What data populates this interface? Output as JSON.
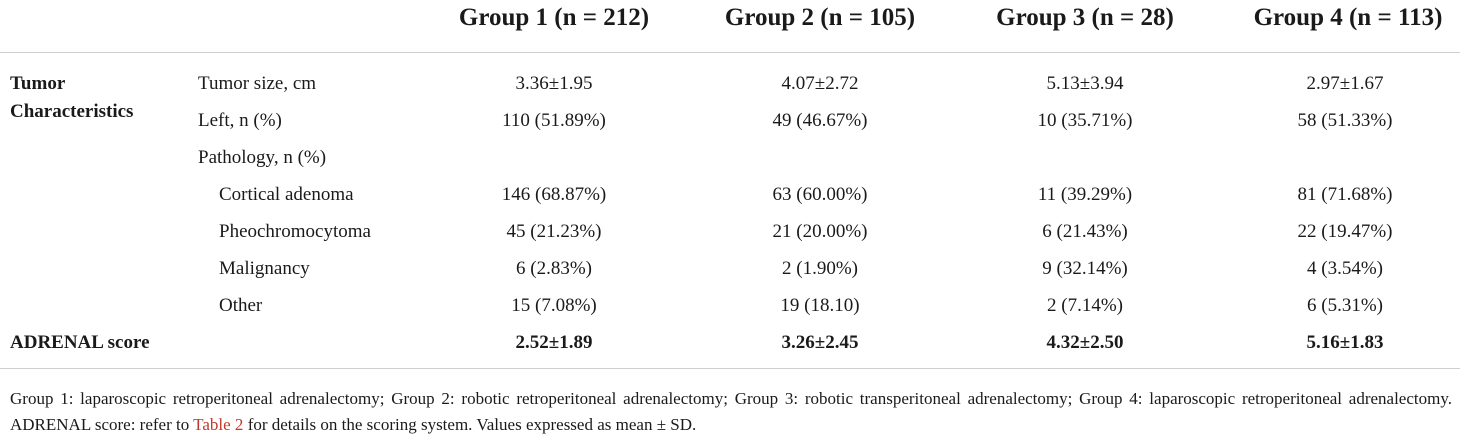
{
  "headers": [
    "Group 1 (n = 212)",
    "Group 2 (n = 105)",
    "Group 3 (n = 28)",
    "Group 4 (n = 113)"
  ],
  "section": {
    "line1": "Tumor",
    "line2": "Characteristics"
  },
  "rows": [
    {
      "label": "Tumor size, cm",
      "values": [
        "3.36±1.95",
        "4.07±2.72",
        "5.13±3.94",
        "2.97±1.67"
      ]
    },
    {
      "label": "Left, n (%)",
      "values": [
        "110 (51.89%)",
        "49 (46.67%)",
        "10 (35.71%)",
        "58 (51.33%)"
      ]
    },
    {
      "label": "Pathology, n (%)",
      "values": [
        "",
        "",
        "",
        ""
      ]
    },
    {
      "label": "Cortical adenoma",
      "values": [
        "146 (68.87%)",
        "63 (60.00%)",
        "11 (39.29%)",
        "81 (71.68%)"
      ]
    },
    {
      "label": "Pheochromocytoma",
      "values": [
        "45 (21.23%)",
        "21 (20.00%)",
        "6 (21.43%)",
        "22 (19.47%)"
      ]
    },
    {
      "label": "Malignancy",
      "values": [
        "6 (2.83%)",
        "2 (1.90%)",
        "9 (32.14%)",
        "4 (3.54%)"
      ]
    },
    {
      "label": "Other",
      "values": [
        "15 (7.08%)",
        "19 (18.10)",
        "2 (7.14%)",
        "6 (5.31%)"
      ]
    }
  ],
  "score_row": {
    "label": "ADRENAL score",
    "values": [
      "2.52±1.89",
      "3.26±2.45",
      "4.32±2.50",
      "5.16±1.83"
    ]
  },
  "footnote": {
    "before": "Group 1: laparoscopic retroperitoneal adrenalectomy; Group 2: robotic retroperitoneal adrenalectomy; Group 3: robotic transperitoneal adrenalectomy; Group 4: laparoscopic retroperitoneal adrenalectomy. ADRENAL score: refer to ",
    "link": "Table 2",
    "after": " for details on the scoring system. Values expressed as mean ± SD."
  }
}
